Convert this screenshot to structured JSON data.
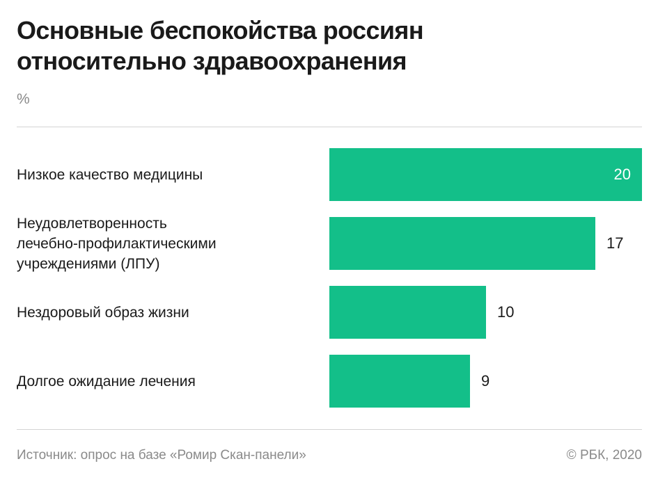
{
  "title_lines": [
    "Основные беспокойства россиян",
    "относительно здравоохранения"
  ],
  "unit": "%",
  "source": "Источник: опрос на базе «Ромир Скан-панели»",
  "copyright": "© РБК, 2020",
  "colors": {
    "bar": "#13bf89",
    "text": "#1a1a1a",
    "muted": "#8a8a8a",
    "rule": "#d4d4d4"
  },
  "chart_data": {
    "type": "bar",
    "orientation": "horizontal",
    "title": "Основные беспокойства россиян относительно здравоохранения",
    "unit": "%",
    "categories": [
      "Низкое качество медицины",
      "Неудовлетворенность лечебно-профилактическими учреждениями (ЛПУ)",
      "Нездоровый образ жизни",
      "Долгое ожидание лечения"
    ],
    "category_lines": [
      [
        "Низкое качество медицины"
      ],
      [
        "Неудовлетворенность",
        "лечебно-профилактическими",
        "учреждениями (ЛПУ)"
      ],
      [
        "Нездоровый образ жизни"
      ],
      [
        "Долгое ожидание лечения"
      ]
    ],
    "values": [
      20,
      17,
      10,
      9
    ],
    "value_labels": [
      "20",
      "17",
      "10",
      "9"
    ],
    "xlim": [
      0,
      20
    ],
    "grid": false,
    "legend": "none"
  }
}
